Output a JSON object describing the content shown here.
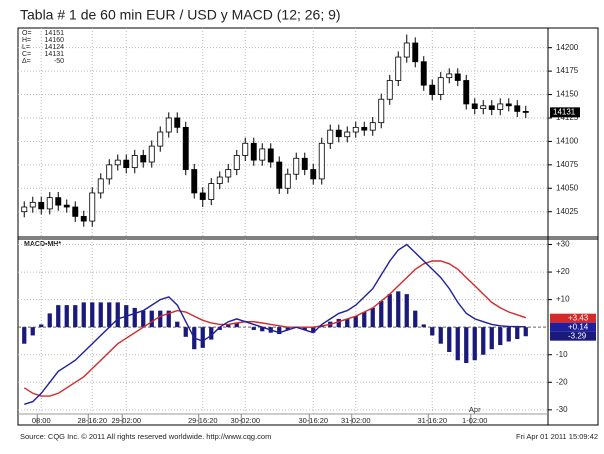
{
  "chart_data": [
    {
      "type": "candlestick",
      "title": "Tabla # 1 de 60 min EUR / USD y MACD (12; 26; 9)",
      "info": [
        {
          "key": "O=",
          "value": 14151
        },
        {
          "key": "H=",
          "value": 14160
        },
        {
          "key": "L=",
          "value": 14124
        },
        {
          "key": "C=",
          "value": 14131
        },
        {
          "key": "Δ=",
          "value": -50
        }
      ],
      "categories": [
        null,
        null,
        "08:00",
        null,
        null,
        null,
        null,
        null,
        "28-16:20",
        null,
        null,
        null,
        "29-02:00",
        null,
        null,
        null,
        null,
        null,
        null,
        null,
        null,
        "29-16:20",
        null,
        null,
        null,
        null,
        "30-02:00",
        null,
        null,
        null,
        null,
        null,
        null,
        null,
        "30-16:20",
        null,
        null,
        null,
        null,
        "31-02:00",
        null,
        null,
        null,
        null,
        null,
        null,
        null,
        null,
        "31-16:20",
        null,
        null,
        null,
        null,
        "1-02:00",
        null,
        null,
        null,
        null,
        null,
        null
      ],
      "x_group_labels": [
        {
          "label": "Apr",
          "at": "1-02:00"
        }
      ],
      "open": [
        14025,
        14030,
        14035,
        14028,
        14040,
        14032,
        14030,
        14020,
        14015,
        14045,
        14060,
        14075,
        14080,
        14072,
        14085,
        14078,
        14095,
        14110,
        14125,
        14115,
        14070,
        14045,
        14038,
        14055,
        14062,
        14070,
        14085,
        14098,
        14080,
        14092,
        14078,
        14050,
        14065,
        14082,
        14070,
        14060,
        14098,
        14112,
        14105,
        14110,
        14115,
        14112,
        14120,
        14145,
        14165,
        14190,
        14205,
        14185,
        14160,
        14150,
        14168,
        14172,
        14165,
        14140,
        14135,
        14138,
        14134,
        14140,
        14138,
        14132
      ],
      "high": [
        14036,
        14041,
        14041,
        14046,
        14046,
        14038,
        14036,
        14026,
        14051,
        14066,
        14081,
        14086,
        14086,
        14091,
        14091,
        14101,
        14116,
        14131,
        14131,
        14121,
        14076,
        14051,
        14061,
        14068,
        14076,
        14091,
        14104,
        14104,
        14098,
        14098,
        14084,
        14071,
        14088,
        14088,
        14076,
        14104,
        14118,
        14118,
        14116,
        14121,
        14121,
        14126,
        14151,
        14171,
        14196,
        14214,
        14211,
        14191,
        14166,
        14174,
        14178,
        14178,
        14171,
        14146,
        14144,
        14144,
        14146,
        14146,
        14144,
        14138
      ],
      "low": [
        14019,
        14024,
        14022,
        14022,
        14026,
        14024,
        14014,
        14009,
        14009,
        14039,
        14054,
        14069,
        14066,
        14066,
        14072,
        14072,
        14089,
        14104,
        14109,
        14064,
        14039,
        14030,
        14032,
        14049,
        14056,
        14064,
        14079,
        14074,
        14074,
        14072,
        14044,
        14044,
        14059,
        14064,
        14054,
        14054,
        14092,
        14099,
        14099,
        14104,
        14106,
        14106,
        14114,
        14139,
        14159,
        14184,
        14179,
        14154,
        14144,
        14144,
        14162,
        14159,
        14134,
        14129,
        14129,
        14128,
        14128,
        14132,
        14126,
        14125
      ],
      "close": [
        14030,
        14035,
        14028,
        14040,
        14032,
        14030,
        14020,
        14015,
        14045,
        14060,
        14075,
        14080,
        14072,
        14085,
        14078,
        14095,
        14110,
        14125,
        14115,
        14070,
        14045,
        14038,
        14055,
        14062,
        14070,
        14085,
        14098,
        14080,
        14092,
        14078,
        14050,
        14065,
        14082,
        14070,
        14060,
        14098,
        14112,
        14105,
        14110,
        14115,
        14112,
        14120,
        14145,
        14165,
        14190,
        14205,
        14185,
        14160,
        14150,
        14168,
        14172,
        14165,
        14140,
        14135,
        14138,
        14134,
        14140,
        14138,
        14132,
        14131
      ],
      "ylim": [
        13998,
        14221
      ],
      "yticks": [
        14025,
        14050,
        14075,
        14100,
        14125,
        14150,
        14175,
        14200
      ],
      "grid": true,
      "up_color": "#ffffff",
      "down_color": "#000000"
    },
    {
      "type": "macd",
      "label": "MACD▪MH*",
      "ylim": [
        -35.5,
        32
      ],
      "yticks": [
        {
          "value": 30,
          "label": "+30"
        },
        {
          "value": 20,
          "label": "+20"
        },
        {
          "value": 10,
          "label": "+10"
        },
        -10,
        -20,
        -30
      ],
      "grid": true,
      "series": [
        {
          "kind": "bar",
          "color": "#1a1a7a",
          "end_label": "-3.29",
          "values": [
            -6,
            -3,
            1,
            5,
            8,
            8,
            8,
            9,
            9,
            9,
            9,
            9,
            8,
            7,
            6,
            6,
            6,
            6,
            2,
            -3.5,
            -8,
            -7.5,
            -4.5,
            -1,
            1,
            1.5,
            0,
            -1,
            -1.5,
            -2,
            -2.5,
            -1,
            0,
            -1,
            -2,
            0.5,
            2,
            3,
            3,
            4,
            5.5,
            7,
            9.5,
            12,
            13,
            12,
            6,
            1,
            -3,
            -6,
            -9,
            -12,
            -13,
            -12,
            -10,
            -8,
            -6.5,
            -5.2,
            -4.3,
            -3.29
          ]
        },
        {
          "kind": "line",
          "color": "#d42a2a",
          "end_label": "+3.43",
          "values": [
            -22,
            -24,
            -25,
            -25,
            -24,
            -22,
            -20,
            -18,
            -15,
            -12,
            -9,
            -6,
            -4,
            -2,
            0,
            2,
            4,
            5,
            6,
            5.5,
            4,
            2.5,
            1.5,
            1,
            1,
            1.5,
            2,
            2,
            1.5,
            1,
            0.5,
            0,
            0,
            0,
            0,
            0.5,
            1,
            2,
            3,
            4,
            5.5,
            7,
            9.5,
            12,
            15,
            18,
            21,
            23,
            24,
            24,
            23,
            21,
            18,
            15,
            12,
            9,
            7,
            5.5,
            4.5,
            3.43
          ]
        },
        {
          "kind": "line",
          "color": "#1f1f9e",
          "end_label": "+0.14",
          "values": [
            -28,
            -27,
            -24,
            -20,
            -16,
            -14,
            -12,
            -9,
            -6,
            -3,
            0,
            3,
            4,
            5,
            6,
            8,
            10,
            11,
            8,
            2,
            -4,
            -5,
            -3,
            0,
            2,
            3,
            2,
            1,
            0,
            -1,
            -2,
            -1,
            0,
            -1,
            -2,
            1,
            3,
            5,
            6,
            8,
            11,
            14,
            19,
            24,
            28,
            30,
            27,
            24,
            21,
            18,
            14,
            9,
            5,
            3,
            2,
            1,
            0.5,
            0.3,
            0.2,
            0.14
          ]
        }
      ]
    }
  ],
  "footer": {
    "source": "Source: CQG Inc. © 2011 All rights reserved worldwide. http://www.cqg.com",
    "timestamp": "Fri Apr 01 2011 15:09:42"
  }
}
